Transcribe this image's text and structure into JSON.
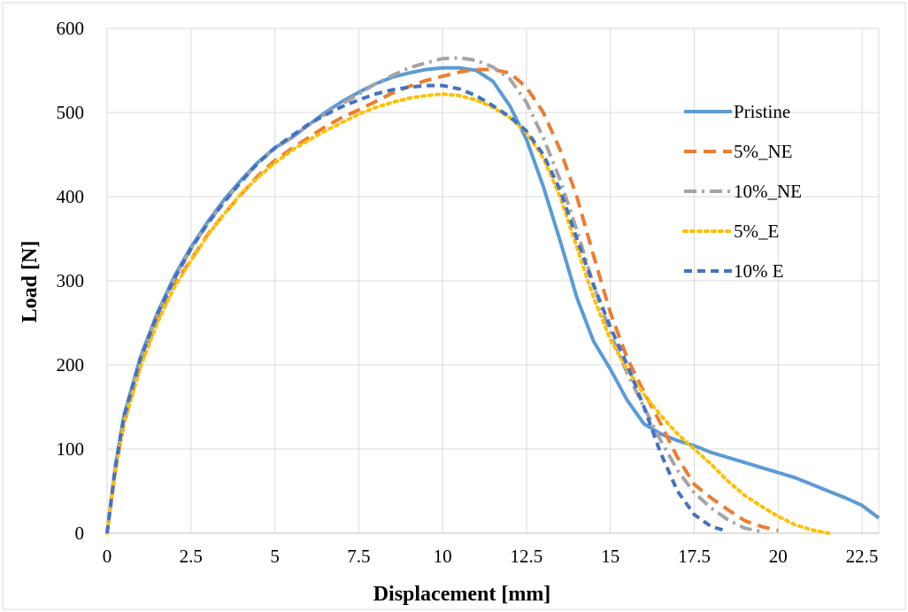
{
  "chart_data": {
    "type": "line",
    "title": "",
    "xlabel": "Displacement [mm]",
    "ylabel": "Load [N]",
    "xlim": [
      0,
      23
    ],
    "ylim": [
      0,
      600
    ],
    "xticks": [
      0,
      2.5,
      5,
      7.5,
      10,
      12.5,
      15,
      17.5,
      20,
      22.5
    ],
    "xtick_labels": [
      "0",
      "2.5",
      "5",
      "7.5",
      "10",
      "12.5",
      "15",
      "17.5",
      "20",
      "22.5"
    ],
    "yticks": [
      0,
      100,
      200,
      300,
      400,
      500,
      600
    ],
    "ytick_labels": [
      "0",
      "100",
      "200",
      "300",
      "400",
      "500",
      "600"
    ],
    "grid": true,
    "legend_position": "right",
    "series": [
      {
        "name": "Pristine",
        "color": "#5b9bd5",
        "dash": "solid",
        "x": [
          0,
          0.25,
          0.5,
          1,
          1.5,
          2,
          2.5,
          3,
          3.5,
          4,
          4.5,
          5,
          5.5,
          6,
          6.5,
          7,
          7.5,
          8,
          8.5,
          9,
          9.5,
          10,
          10.5,
          11,
          11.5,
          12,
          12.5,
          13,
          13.5,
          14,
          14.5,
          15,
          15.5,
          16,
          16.5,
          17,
          17.5,
          18,
          18.5,
          19,
          19.5,
          20,
          20.5,
          21,
          21.5,
          22,
          22.5,
          23
        ],
        "y": [
          0,
          80,
          140,
          210,
          262,
          305,
          340,
          370,
          397,
          420,
          441,
          458,
          470,
          485,
          500,
          513,
          524,
          534,
          542,
          547,
          551,
          553,
          553,
          550,
          537,
          508,
          468,
          412,
          348,
          280,
          228,
          195,
          158,
          130,
          118,
          110,
          104,
          96,
          90,
          84,
          78,
          72,
          66,
          58,
          50,
          42,
          33,
          18
        ]
      },
      {
        "name": "5%_NE",
        "color": "#ed7d31",
        "dash": "long-dash",
        "x": [
          0,
          0.25,
          0.5,
          1,
          1.5,
          2,
          2.5,
          3,
          3.5,
          4,
          4.5,
          5,
          5.5,
          6,
          6.5,
          7,
          7.5,
          8,
          8.5,
          9,
          9.5,
          10,
          10.5,
          11,
          11.5,
          12,
          12.5,
          13,
          13.5,
          14,
          14.5,
          15,
          15.5,
          16,
          16.5,
          17,
          17.5,
          18,
          18.5,
          19,
          19.5,
          20
        ],
        "y": [
          0,
          75,
          130,
          200,
          255,
          295,
          325,
          355,
          380,
          403,
          425,
          443,
          457,
          470,
          483,
          494,
          503,
          513,
          523,
          531,
          538,
          543,
          548,
          551,
          551,
          547,
          530,
          500,
          456,
          400,
          330,
          262,
          208,
          168,
          130,
          90,
          58,
          42,
          28,
          15,
          8,
          3
        ]
      },
      {
        "name": "10%_NE",
        "color": "#a5a5a5",
        "dash": "dash-dot",
        "x": [
          0,
          0.25,
          0.5,
          1,
          1.5,
          2,
          2.5,
          3,
          3.5,
          4,
          4.5,
          5,
          5.5,
          6,
          6.5,
          7,
          7.5,
          8,
          8.5,
          9,
          9.5,
          10,
          10.5,
          11,
          11.5,
          12,
          12.5,
          13,
          13.5,
          14,
          14.5,
          15,
          15.5,
          16,
          16.5,
          17,
          17.5,
          18,
          18.5,
          19,
          19.5
        ],
        "y": [
          0,
          80,
          138,
          208,
          260,
          302,
          338,
          368,
          395,
          418,
          440,
          457,
          470,
          485,
          498,
          510,
          522,
          534,
          544,
          553,
          559,
          564,
          565,
          562,
          554,
          540,
          512,
          470,
          420,
          360,
          295,
          238,
          190,
          150,
          110,
          75,
          48,
          30,
          16,
          6,
          2
        ]
      },
      {
        "name": "5%_E",
        "color": "#ffc000",
        "dash": "dotted",
        "x": [
          0,
          0.25,
          0.5,
          1,
          1.5,
          2,
          2.5,
          3,
          3.5,
          4,
          4.5,
          5,
          5.5,
          6,
          6.5,
          7,
          7.5,
          8,
          8.5,
          9,
          9.5,
          10,
          10.5,
          11,
          11.5,
          12,
          12.5,
          13,
          13.5,
          14,
          14.5,
          15,
          15.5,
          16,
          16.5,
          17,
          17.5,
          18,
          18.5,
          19,
          19.5,
          20,
          20.5,
          21,
          21.5
        ],
        "y": [
          0,
          75,
          130,
          198,
          250,
          292,
          324,
          354,
          380,
          404,
          423,
          440,
          455,
          467,
          478,
          488,
          498,
          506,
          512,
          517,
          520,
          522,
          520,
          515,
          506,
          494,
          476,
          446,
          400,
          340,
          280,
          230,
          195,
          165,
          140,
          118,
          100,
          82,
          62,
          45,
          32,
          20,
          10,
          4,
          0
        ]
      },
      {
        "name": "10% E",
        "color": "#4472c4",
        "dash": "short-dash",
        "x": [
          0,
          0.25,
          0.5,
          1,
          1.5,
          2,
          2.5,
          3,
          3.5,
          4,
          4.5,
          5,
          5.5,
          6,
          6.5,
          7,
          7.5,
          8,
          8.5,
          9,
          9.5,
          10,
          10.5,
          11,
          11.5,
          12,
          12.5,
          13,
          13.5,
          14,
          14.5,
          15,
          15.5,
          16,
          16.5,
          17,
          17.5,
          18,
          18.5
        ],
        "y": [
          0,
          80,
          138,
          208,
          260,
          302,
          338,
          368,
          394,
          418,
          440,
          458,
          472,
          486,
          497,
          507,
          515,
          522,
          527,
          530,
          532,
          532,
          528,
          520,
          508,
          495,
          478,
          450,
          408,
          350,
          295,
          245,
          200,
          150,
          95,
          50,
          22,
          8,
          2
        ]
      }
    ]
  }
}
